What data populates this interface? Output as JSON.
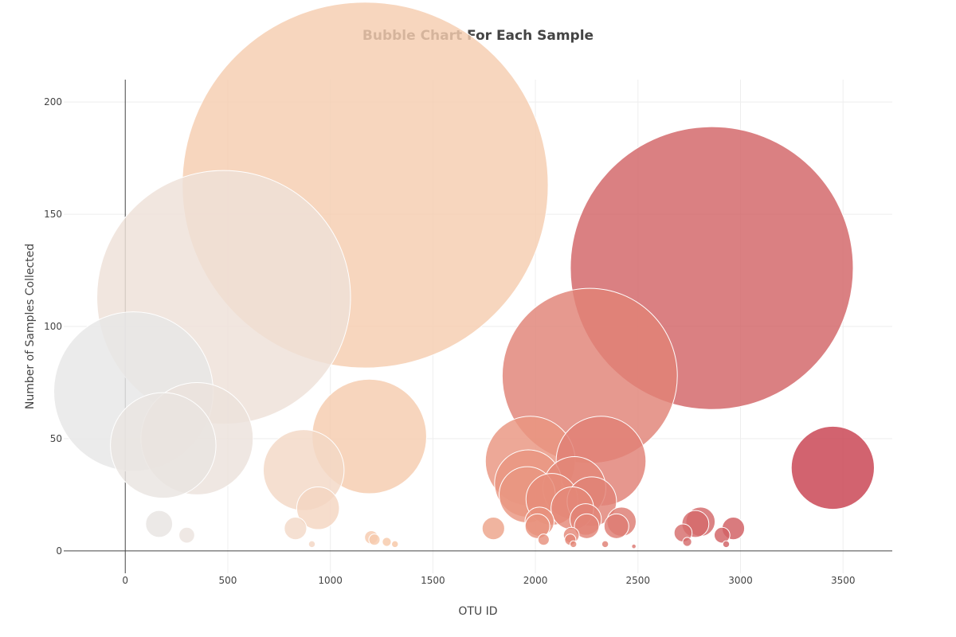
{
  "chart_data": {
    "type": "scatter",
    "title": "Bubble Chart For Each Sample",
    "xlabel": "OTU ID",
    "ylabel": "Number of Samples Collected",
    "xlim": [
      -300,
      3740
    ],
    "ylim": [
      -10,
      210
    ],
    "xticks": [
      0,
      500,
      1000,
      1500,
      2000,
      2500,
      3000,
      3500
    ],
    "yticks": [
      0,
      50,
      100,
      150,
      200
    ],
    "grid": true,
    "legend": "none",
    "colorscale": [
      "#e6e6e6",
      "#f2ddd0",
      "#f7c4a0",
      "#e68c7a",
      "#d46a6a",
      "#c8414f"
    ],
    "series": [
      {
        "x": [
          40,
          185,
          165,
          350,
          300,
          480,
          830,
          870,
          910,
          940,
          1170,
          1190,
          1200,
          1215,
          1275,
          1315,
          1795,
          1960,
          1965,
          1975,
          2010,
          2020,
          2040,
          2080,
          2170,
          2175,
          2180,
          2185,
          2190,
          2245,
          2250,
          2265,
          2275,
          2320,
          2340,
          2395,
          2420,
          2480,
          2720,
          2740,
          2780,
          2805,
          2860,
          2910,
          2930,
          2965,
          3450
        ],
        "y": [
          71,
          47,
          12,
          50,
          7,
          113,
          10,
          36,
          3,
          19,
          163,
          51,
          6,
          5,
          4,
          3,
          10,
          25,
          30,
          40,
          11,
          13,
          5,
          23,
          5,
          7,
          19,
          3,
          28,
          14,
          11,
          78,
          22,
          40,
          3,
          11,
          13,
          2,
          8,
          4,
          12,
          13,
          126,
          7,
          3,
          10,
          37
        ],
        "marker_size": [
          71,
          47,
          12,
          50,
          7,
          113,
          10,
          36,
          3,
          19,
          163,
          51,
          6,
          5,
          4,
          3,
          10,
          25,
          30,
          40,
          11,
          13,
          5,
          23,
          5,
          7,
          19,
          3,
          28,
          14,
          11,
          78,
          22,
          40,
          3,
          11,
          13,
          2,
          8,
          4,
          12,
          13,
          126,
          7,
          3,
          10,
          37
        ]
      }
    ]
  }
}
